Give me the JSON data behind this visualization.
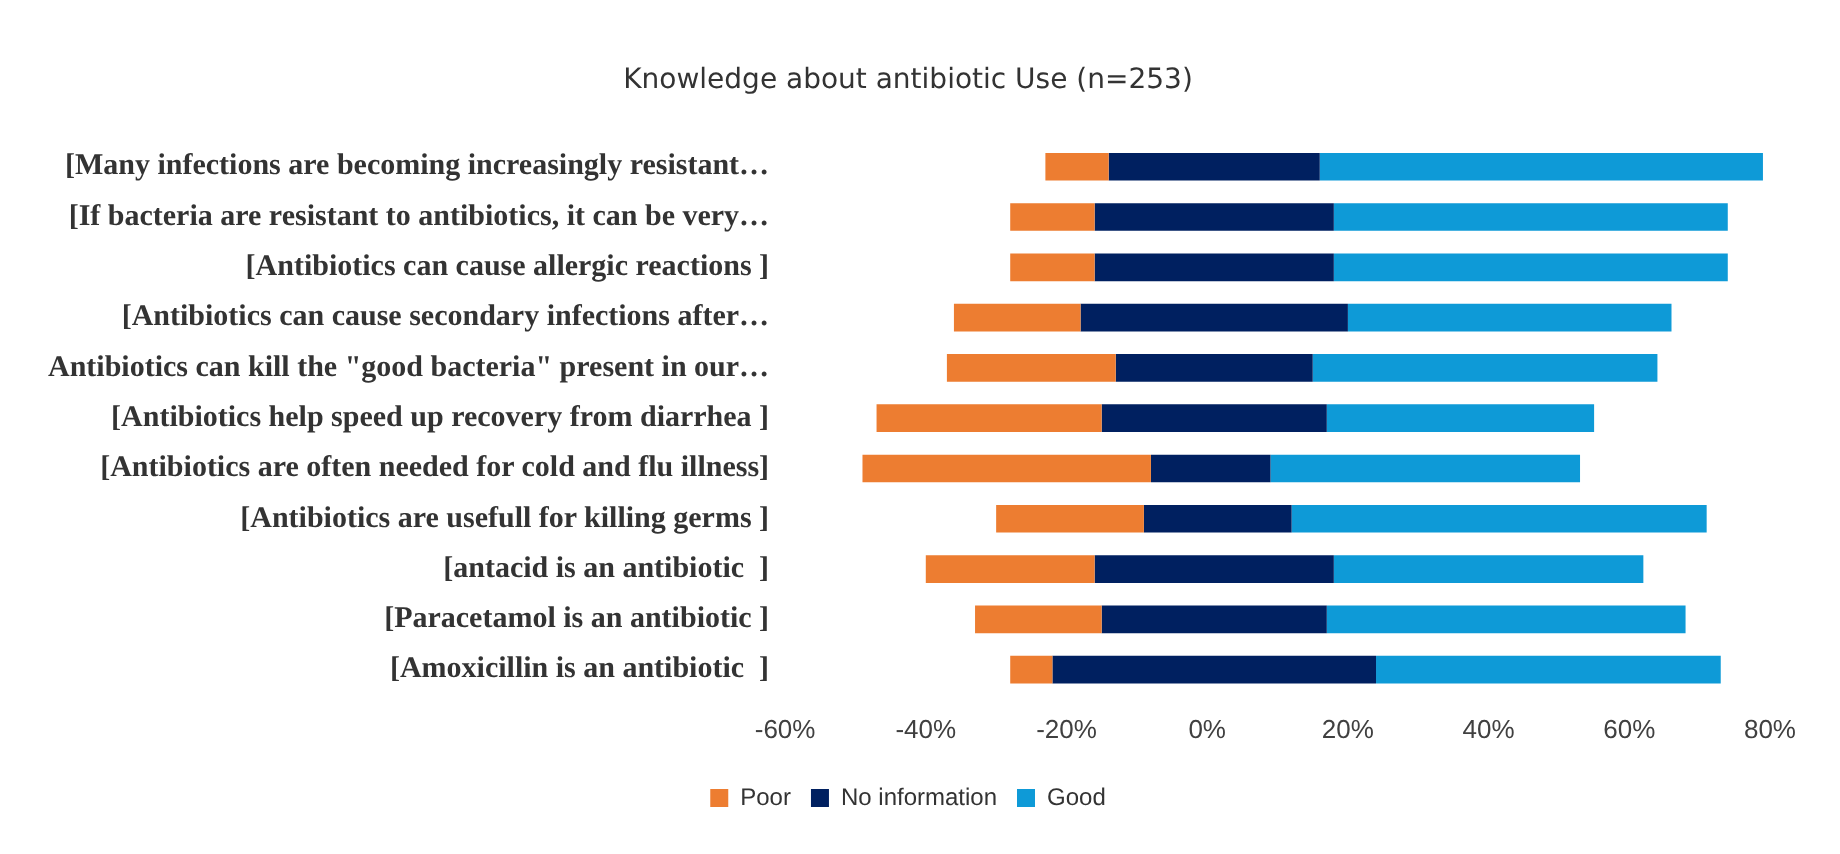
{
  "chart_data": {
    "type": "bar",
    "orientation": "horizontal",
    "title": "Knowledge about antibiotic Use (n=253)",
    "categories": [
      "[Many infections are becoming increasingly resistant…",
      "[If bacteria are resistant to antibiotics, it can be very…",
      "[Antibiotics can cause allergic reactions ]",
      "[Antibiotics can cause secondary infections after…",
      "Antibiotics can kill the \"good bacteria\" present in our…",
      "[Antibiotics help speed up recovery from diarrhea ]",
      "[Antibiotics are often needed for cold and flu illness]",
      "[Antibiotics are usefull for killing germs ]",
      "[antacid is an antibiotic  ]",
      "[Paracetamol is an antibiotic ]",
      "[Amoxicillin is an antibiotic  ]"
    ],
    "series": [
      {
        "name": "Poor",
        "color": "#ed7d31",
        "base": [
          -23,
          -28,
          -28,
          -36,
          -37,
          -47,
          -49,
          -30,
          -40,
          -33,
          -28
        ],
        "values": [
          9,
          12,
          12,
          18,
          24,
          32,
          41,
          21,
          24,
          18,
          6
        ]
      },
      {
        "name": "No information",
        "color": "#002060",
        "base": [
          -14,
          -16,
          -16,
          -18,
          -13,
          -15,
          -8,
          -9,
          -16,
          -15,
          -22
        ],
        "values": [
          30,
          34,
          34,
          38,
          28,
          32,
          17,
          21,
          34,
          32,
          46
        ]
      },
      {
        "name": "Good",
        "color": "#0e9ad7",
        "base": [
          16,
          18,
          18,
          20,
          15,
          17,
          9,
          12,
          18,
          17,
          24
        ],
        "values": [
          63,
          56,
          56,
          46,
          49,
          38,
          44,
          59,
          44,
          51,
          49
        ]
      }
    ],
    "xlim": [
      -60,
      80
    ],
    "xticks": [
      {
        "value": -60,
        "label": "-60%"
      },
      {
        "value": -40,
        "label": "-40%"
      },
      {
        "value": -20,
        "label": "-20%"
      },
      {
        "value": 0,
        "label": "0%"
      },
      {
        "value": 20,
        "label": "20%"
      },
      {
        "value": 40,
        "label": "40%"
      },
      {
        "value": 60,
        "label": "60%"
      },
      {
        "value": 80,
        "label": "80%"
      }
    ],
    "grid": false,
    "legend": "bottom"
  }
}
